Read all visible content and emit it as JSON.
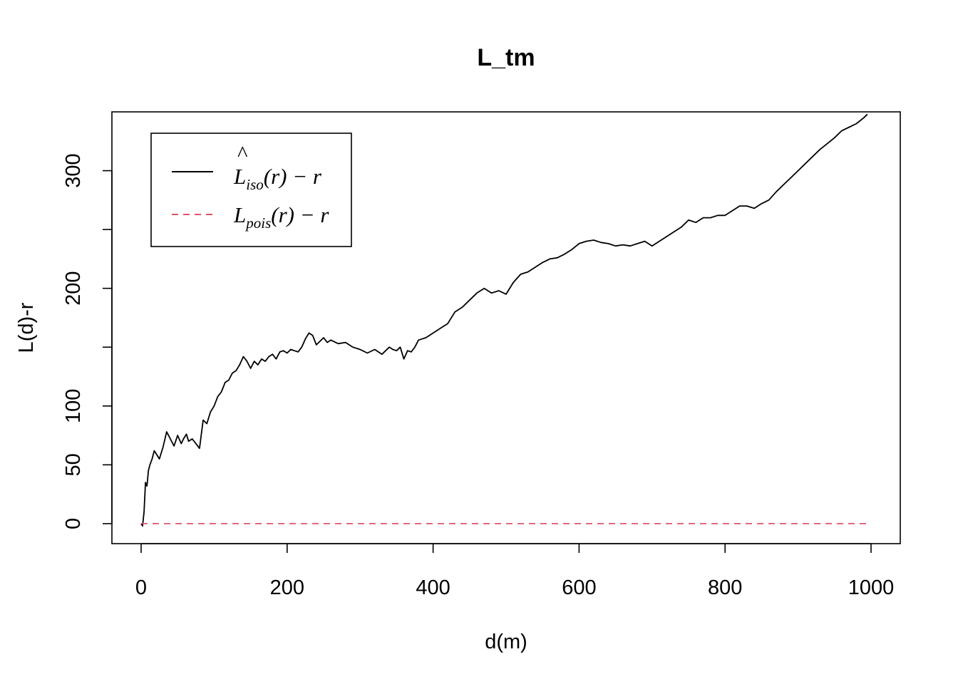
{
  "chart_data": {
    "type": "line",
    "title": "L_tm",
    "xlabel": "d(m)",
    "ylabel": "L(d)-r",
    "xlim": [
      0,
      1000
    ],
    "ylim": [
      -17,
      350
    ],
    "x_ticks": [
      0,
      200,
      400,
      600,
      800,
      1000
    ],
    "y_ticks": [
      0,
      50,
      100,
      150,
      200,
      250,
      300
    ],
    "y_tick_labels": [
      "0",
      "50",
      "100",
      "",
      "200",
      "",
      "300"
    ],
    "legend_position": "top-left",
    "legend": [
      {
        "base": "L",
        "hat": "^",
        "subscript": "iso",
        "suffix": "(r) − r",
        "color": "#000000",
        "line": "solid"
      },
      {
        "base": "L",
        "hat": "",
        "subscript": "pois",
        "suffix": "(r) − r",
        "color": "#DF536B",
        "line": "dashed"
      }
    ],
    "series": [
      {
        "color": "#000000",
        "line": "solid",
        "x": [
          0,
          2,
          4,
          6,
          8,
          10,
          12,
          15,
          18,
          20,
          25,
          30,
          35,
          40,
          45,
          50,
          55,
          58,
          62,
          65,
          70,
          75,
          80,
          85,
          90,
          95,
          100,
          105,
          110,
          115,
          120,
          125,
          130,
          135,
          140,
          145,
          150,
          155,
          160,
          165,
          170,
          175,
          180,
          185,
          190,
          195,
          200,
          205,
          210,
          215,
          220,
          225,
          230,
          235,
          240,
          245,
          250,
          255,
          260,
          270,
          280,
          290,
          300,
          310,
          320,
          330,
          340,
          345,
          350,
          355,
          360,
          365,
          370,
          375,
          380,
          385,
          390,
          395,
          400,
          405,
          410,
          420,
          430,
          440,
          450,
          460,
          470,
          480,
          490,
          500,
          510,
          520,
          530,
          540,
          550,
          560,
          570,
          580,
          590,
          600,
          610,
          620,
          630,
          640,
          650,
          660,
          670,
          680,
          690,
          700,
          710,
          720,
          730,
          740,
          750,
          760,
          770,
          780,
          790,
          800,
          810,
          820,
          830,
          840,
          850,
          860,
          870,
          880,
          890,
          900,
          910,
          920,
          930,
          940,
          950,
          960,
          970,
          980,
          990,
          995
        ],
        "y": [
          0,
          -2,
          10,
          35,
          32,
          45,
          50,
          55,
          62,
          60,
          55,
          65,
          78,
          72,
          66,
          75,
          68,
          72,
          76,
          70,
          72,
          68,
          64,
          88,
          85,
          95,
          100,
          108,
          112,
          120,
          122,
          128,
          130,
          135,
          142,
          138,
          132,
          138,
          135,
          140,
          138,
          142,
          144,
          140,
          146,
          147,
          145,
          148,
          147,
          146,
          150,
          157,
          162,
          160,
          152,
          155,
          158,
          154,
          156,
          153,
          154,
          150,
          148,
          145,
          148,
          144,
          150,
          148,
          147,
          150,
          140,
          147,
          146,
          150,
          156,
          157,
          158,
          160,
          162,
          164,
          166,
          170,
          180,
          184,
          190,
          196,
          200,
          196,
          198,
          195,
          205,
          212,
          214,
          218,
          222,
          225,
          226,
          229,
          233,
          238,
          240,
          241,
          239,
          238,
          236,
          237,
          236,
          238,
          240,
          236,
          240,
          244,
          248,
          252,
          258,
          256,
          260,
          260,
          262,
          262,
          266,
          270,
          270,
          268,
          272,
          275,
          282,
          288,
          294,
          300,
          306,
          312,
          318,
          323,
          328,
          334,
          337,
          340,
          345,
          348
        ]
      },
      {
        "color": "#DF536B",
        "line": "dashed",
        "x": [
          0,
          1000
        ],
        "y": [
          0,
          0
        ]
      }
    ]
  }
}
